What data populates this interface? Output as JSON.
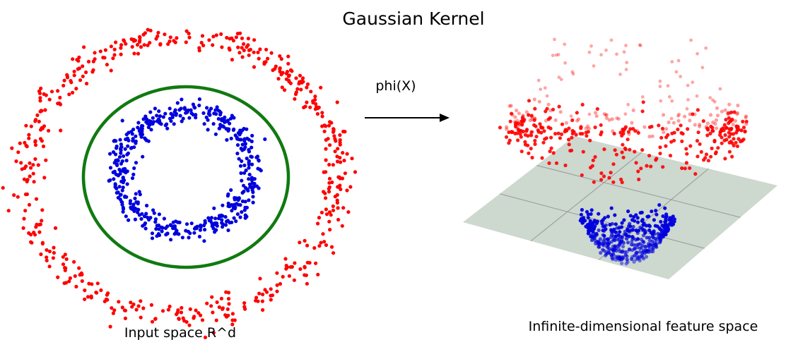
{
  "title": "Gaussian Kernel",
  "mapping_label": "phi(X)",
  "left_panel": {
    "caption": "Input space R^d"
  },
  "right_panel": {
    "caption": "Infinite-dimensional feature space"
  },
  "colors": {
    "outer_class": "#ff0000",
    "inner_class": "#0000dd",
    "decision_boundary": "#107a10",
    "plane_fill": "#c9d5cb",
    "plane_grid": "#8a8a8a",
    "arrow": "#000000"
  }
}
